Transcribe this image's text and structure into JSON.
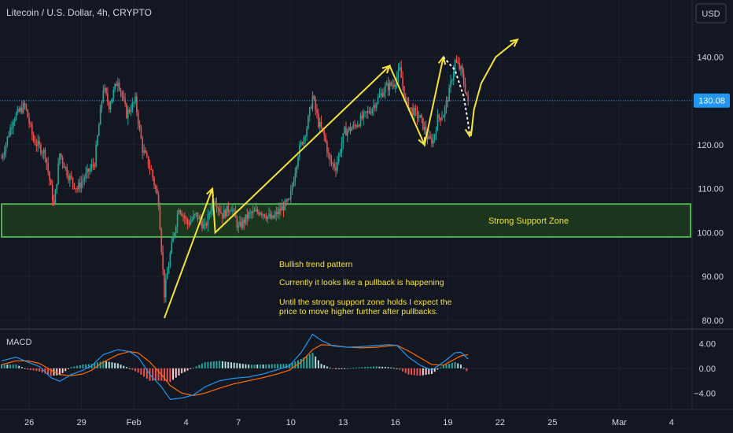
{
  "header": {
    "symbol_title": "Litecoin / U.S. Dollar, 4h, CRYPTO",
    "currency_button": "USD"
  },
  "colors": {
    "background": "#131722",
    "up": "#26a69a",
    "down": "#ef5350",
    "annotation": "#f5e33b",
    "support_border": "#4caf50",
    "support_fill": "#1e3b1e",
    "price_line": "#2196f3",
    "macd_line": "#2196f3",
    "signal_line": "#ff6d00",
    "hist_up_strong": "#26a69a",
    "hist_up_weak": "#b2dfdb",
    "hist_down_strong": "#ef5350",
    "hist_down_weak": "#ffcdd2"
  },
  "chart_data": {
    "type": "candlestick",
    "price_axis": {
      "min": 78,
      "max": 153,
      "ticks": [
        80,
        90,
        100,
        110,
        120,
        130,
        140
      ],
      "tick_labels": [
        "80.00",
        "90.00",
        "100.00",
        "110.00",
        "120.00",
        "130.00",
        "140.00"
      ]
    },
    "current_price": 130.08,
    "current_price_label": "130.08",
    "date_axis": {
      "labels": [
        {
          "text": "26",
          "bar": 19
        },
        {
          "text": "29",
          "bar": 55
        },
        {
          "text": "Feb",
          "bar": 91
        },
        {
          "text": "4",
          "bar": 127
        },
        {
          "text": "7",
          "bar": 163
        },
        {
          "text": "10",
          "bar": 199
        },
        {
          "text": "13",
          "bar": 235
        },
        {
          "text": "16",
          "bar": 271
        },
        {
          "text": "19",
          "bar": 307
        },
        {
          "text": "22",
          "bar": 343
        },
        {
          "text": "25",
          "bar": 379
        },
        {
          "text": "Mar",
          "bar": 425
        },
        {
          "text": "4",
          "bar": 461
        }
      ],
      "total_bars": 472
    },
    "price_segments": [
      [
        0,
        117
      ],
      [
        8,
        126
      ],
      [
        16,
        129
      ],
      [
        22,
        121
      ],
      [
        30,
        118
      ],
      [
        36,
        106
      ],
      [
        40,
        118
      ],
      [
        46,
        113
      ],
      [
        52,
        110
      ],
      [
        58,
        113
      ],
      [
        64,
        116
      ],
      [
        70,
        133
      ],
      [
        74,
        129
      ],
      [
        80,
        135
      ],
      [
        86,
        127
      ],
      [
        92,
        130
      ],
      [
        97,
        119
      ],
      [
        103,
        114
      ],
      [
        108,
        107
      ],
      [
        112,
        86
      ],
      [
        116,
        95
      ],
      [
        122,
        106
      ],
      [
        128,
        102
      ],
      [
        134,
        104
      ],
      [
        140,
        101
      ],
      [
        146,
        108
      ],
      [
        152,
        104
      ],
      [
        158,
        106
      ],
      [
        163,
        101
      ],
      [
        170,
        104
      ],
      [
        178,
        105
      ],
      [
        186,
        103
      ],
      [
        194,
        106
      ],
      [
        198,
        107
      ],
      [
        204,
        118
      ],
      [
        210,
        124
      ],
      [
        214,
        131
      ],
      [
        218,
        125
      ],
      [
        222,
        122
      ],
      [
        226,
        116
      ],
      [
        230,
        115
      ],
      [
        236,
        123
      ],
      [
        242,
        124
      ],
      [
        248,
        126
      ],
      [
        254,
        128
      ],
      [
        260,
        131
      ],
      [
        264,
        133
      ],
      [
        270,
        134
      ],
      [
        274,
        137
      ],
      [
        278,
        130
      ],
      [
        282,
        128
      ],
      [
        288,
        126
      ],
      [
        294,
        121
      ],
      [
        297,
        121
      ],
      [
        300,
        126
      ],
      [
        304,
        127
      ],
      [
        308,
        132
      ],
      [
        312,
        139
      ],
      [
        316,
        137
      ],
      [
        321,
        130
      ]
    ],
    "macd": {
      "axis": {
        "min": -6.5,
        "max": 6.2,
        "ticks": [
          4,
          0,
          -4
        ],
        "tick_labels": [
          "4.00",
          "0.00",
          "−4.00"
        ]
      },
      "label": "MACD",
      "macd_segments": [
        [
          0,
          1.2
        ],
        [
          10,
          1.8
        ],
        [
          18,
          1.0
        ],
        [
          26,
          0.3
        ],
        [
          34,
          -1.5
        ],
        [
          40,
          -2.1
        ],
        [
          48,
          -1.0
        ],
        [
          56,
          -0.3
        ],
        [
          62,
          0.4
        ],
        [
          70,
          2.2
        ],
        [
          80,
          3.0
        ],
        [
          88,
          2.7
        ],
        [
          94,
          1.8
        ],
        [
          102,
          -1.0
        ],
        [
          110,
          -3.0
        ],
        [
          116,
          -5.0
        ],
        [
          124,
          -4.8
        ],
        [
          132,
          -4.3
        ],
        [
          140,
          -3.0
        ],
        [
          150,
          -2.0
        ],
        [
          160,
          -1.6
        ],
        [
          170,
          -1.4
        ],
        [
          180,
          -0.9
        ],
        [
          190,
          -0.2
        ],
        [
          198,
          0.4
        ],
        [
          206,
          2.5
        ],
        [
          214,
          5.5
        ],
        [
          220,
          4.5
        ],
        [
          228,
          3.6
        ],
        [
          238,
          3.4
        ],
        [
          248,
          3.5
        ],
        [
          258,
          3.7
        ],
        [
          266,
          3.8
        ],
        [
          272,
          3.7
        ],
        [
          280,
          1.8
        ],
        [
          288,
          0.5
        ],
        [
          296,
          -0.3
        ],
        [
          304,
          1.0
        ],
        [
          312,
          2.5
        ],
        [
          316,
          2.6
        ],
        [
          321,
          1.5
        ]
      ],
      "signal_segments": [
        [
          0,
          0.6
        ],
        [
          10,
          1.2
        ],
        [
          18,
          1.2
        ],
        [
          26,
          0.8
        ],
        [
          34,
          -0.3
        ],
        [
          40,
          -1.0
        ],
        [
          48,
          -1.2
        ],
        [
          56,
          -0.9
        ],
        [
          62,
          -0.3
        ],
        [
          70,
          1.0
        ],
        [
          80,
          2.2
        ],
        [
          88,
          2.7
        ],
        [
          94,
          2.5
        ],
        [
          102,
          1.0
        ],
        [
          110,
          -1.0
        ],
        [
          116,
          -2.8
        ],
        [
          124,
          -4.0
        ],
        [
          132,
          -4.4
        ],
        [
          140,
          -4.0
        ],
        [
          150,
          -3.2
        ],
        [
          160,
          -2.5
        ],
        [
          170,
          -2.0
        ],
        [
          180,
          -1.5
        ],
        [
          190,
          -0.9
        ],
        [
          198,
          -0.3
        ],
        [
          206,
          1.0
        ],
        [
          214,
          3.0
        ],
        [
          220,
          3.8
        ],
        [
          228,
          3.7
        ],
        [
          238,
          3.4
        ],
        [
          248,
          3.3
        ],
        [
          258,
          3.4
        ],
        [
          266,
          3.6
        ],
        [
          272,
          3.7
        ],
        [
          280,
          2.8
        ],
        [
          288,
          1.7
        ],
        [
          296,
          0.6
        ],
        [
          304,
          0.5
        ],
        [
          312,
          1.5
        ],
        [
          316,
          2.0
        ],
        [
          321,
          2.2
        ]
      ]
    }
  },
  "annotations": {
    "support_zone_label": "Strong Support Zone",
    "support_zone_range": [
      99,
      106.5
    ],
    "text_lines": [
      "Bullish trend pattern",
      "Currently it looks like a pullback is happening",
      "Until the strong support zone holds I expect the",
      "price to move higher further after pullbacks."
    ],
    "trend_path": [
      [
        112,
        80.5
      ],
      [
        145,
        110
      ],
      [
        147,
        100
      ],
      [
        267,
        138
      ],
      [
        291,
        120
      ],
      [
        304,
        140
      ]
    ],
    "pullback_arc": [
      [
        304,
        140
      ],
      [
        312,
        137
      ],
      [
        318,
        131
      ],
      [
        321,
        125
      ],
      [
        322,
        122
      ]
    ],
    "projection_arc": [
      [
        323,
        122
      ],
      [
        325,
        128
      ],
      [
        330,
        134
      ],
      [
        340,
        140
      ],
      [
        355,
        144
      ]
    ]
  }
}
